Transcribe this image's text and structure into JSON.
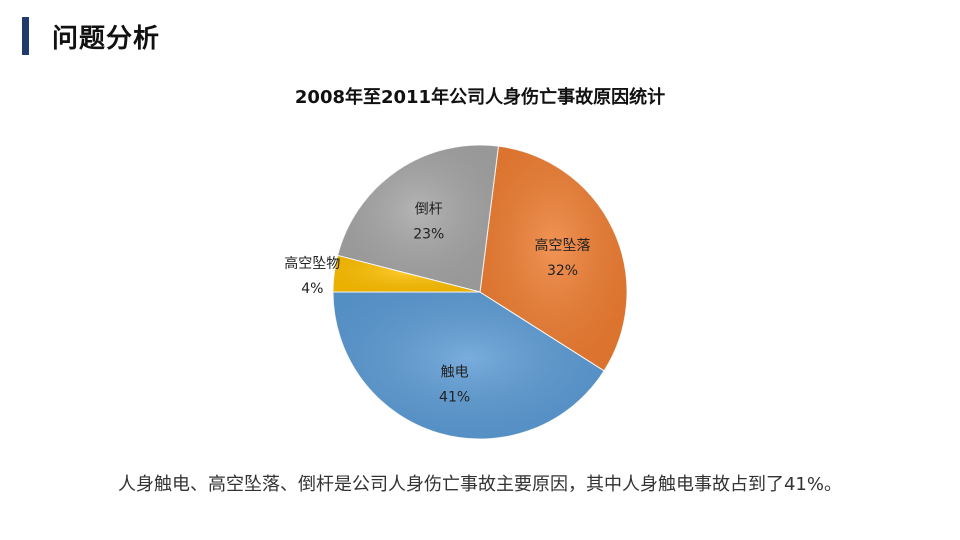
{
  "page": {
    "title": "问题分析"
  },
  "summary": "人身触电、高空坠落、倒杆是公司人身伤亡事故主要原因，其中人身触电事故占到了41%。",
  "chart_data": {
    "type": "pie",
    "title": "2008年至2011年公司人身伤亡事故原因统计",
    "start_category": "触电",
    "slices": [
      {
        "label": "高空坠落",
        "value": 32,
        "display": "32%",
        "color": "#ef7d31"
      },
      {
        "label": "倒杆",
        "value": 23,
        "display": "23%",
        "color": "#a5a5a5"
      },
      {
        "label": "高空坠物",
        "value": 4,
        "display": "4%",
        "color": "#ffc000"
      },
      {
        "label": "触电",
        "value": 41,
        "display": "41%",
        "color": "#5b9bd5"
      }
    ]
  }
}
